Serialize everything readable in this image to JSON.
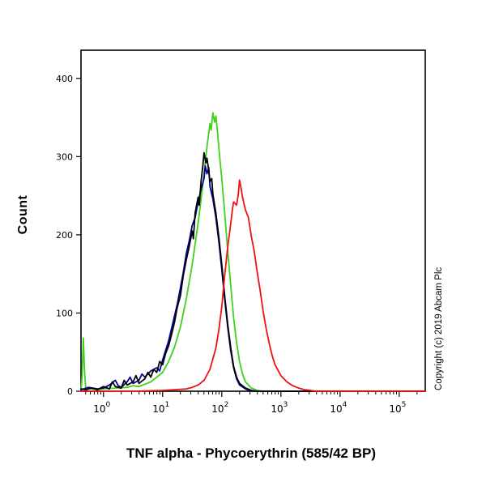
{
  "copyright": "Copyright (c) 2019 Abcam Plc",
  "chart_data": {
    "type": "line",
    "title": "",
    "xlabel": "TNF alpha - Phycoerythrin (585/42 BP)",
    "ylabel": "Count",
    "x_scale": "log10",
    "xlim_log": [
      -0.38,
      5.44
    ],
    "ylim": [
      0,
      436
    ],
    "yticks": [
      0,
      100,
      200,
      300,
      400
    ],
    "xticks_exp": [
      0,
      1,
      2,
      3,
      4,
      5
    ],
    "grid": false,
    "legend": "none",
    "plot_border_color": "#000000",
    "series": [
      {
        "name": "green-curve",
        "color": "#3fd11c",
        "points": [
          [
            -0.38,
            0
          ],
          [
            -0.36,
            22
          ],
          [
            -0.34,
            68
          ],
          [
            -0.32,
            25
          ],
          [
            -0.3,
            5
          ],
          [
            -0.2,
            3
          ],
          [
            -0.1,
            2
          ],
          [
            0.0,
            3
          ],
          [
            0.2,
            4
          ],
          [
            0.4,
            5
          ],
          [
            0.5,
            7
          ],
          [
            0.6,
            6
          ],
          [
            0.7,
            9
          ],
          [
            0.8,
            12
          ],
          [
            0.9,
            18
          ],
          [
            1.0,
            24
          ],
          [
            1.1,
            38
          ],
          [
            1.2,
            56
          ],
          [
            1.3,
            82
          ],
          [
            1.4,
            118
          ],
          [
            1.5,
            162
          ],
          [
            1.55,
            188
          ],
          [
            1.6,
            215
          ],
          [
            1.65,
            245
          ],
          [
            1.7,
            278
          ],
          [
            1.75,
            312
          ],
          [
            1.78,
            330
          ],
          [
            1.8,
            342
          ],
          [
            1.82,
            334
          ],
          [
            1.85,
            356
          ],
          [
            1.88,
            344
          ],
          [
            1.9,
            352
          ],
          [
            1.93,
            330
          ],
          [
            1.95,
            312
          ],
          [
            2.0,
            272
          ],
          [
            2.05,
            228
          ],
          [
            2.1,
            180
          ],
          [
            2.15,
            136
          ],
          [
            2.2,
            94
          ],
          [
            2.25,
            62
          ],
          [
            2.3,
            38
          ],
          [
            2.35,
            22
          ],
          [
            2.4,
            12
          ],
          [
            2.5,
            4
          ],
          [
            2.6,
            1
          ],
          [
            2.7,
            0
          ],
          [
            5.44,
            0
          ]
        ]
      },
      {
        "name": "blue-curve",
        "color": "#000099",
        "points": [
          [
            -0.38,
            2
          ],
          [
            -0.25,
            5
          ],
          [
            -0.1,
            3
          ],
          [
            0.0,
            4
          ],
          [
            0.1,
            8
          ],
          [
            0.2,
            14
          ],
          [
            0.25,
            7
          ],
          [
            0.3,
            5
          ],
          [
            0.4,
            12
          ],
          [
            0.45,
            18
          ],
          [
            0.5,
            10
          ],
          [
            0.6,
            14
          ],
          [
            0.65,
            22
          ],
          [
            0.7,
            18
          ],
          [
            0.8,
            26
          ],
          [
            0.9,
            30
          ],
          [
            0.95,
            26
          ],
          [
            1.0,
            40
          ],
          [
            1.05,
            52
          ],
          [
            1.1,
            64
          ],
          [
            1.15,
            80
          ],
          [
            1.2,
            96
          ],
          [
            1.25,
            112
          ],
          [
            1.3,
            132
          ],
          [
            1.35,
            152
          ],
          [
            1.4,
            176
          ],
          [
            1.45,
            192
          ],
          [
            1.5,
            212
          ],
          [
            1.55,
            222
          ],
          [
            1.6,
            242
          ],
          [
            1.65,
            258
          ],
          [
            1.7,
            272
          ],
          [
            1.72,
            288
          ],
          [
            1.75,
            278
          ],
          [
            1.78,
            286
          ],
          [
            1.8,
            262
          ],
          [
            1.85,
            246
          ],
          [
            1.9,
            222
          ],
          [
            1.95,
            192
          ],
          [
            2.0,
            156
          ],
          [
            2.05,
            118
          ],
          [
            2.1,
            82
          ],
          [
            2.15,
            52
          ],
          [
            2.2,
            30
          ],
          [
            2.25,
            16
          ],
          [
            2.3,
            8
          ],
          [
            2.4,
            3
          ],
          [
            2.5,
            0
          ],
          [
            5.44,
            0
          ]
        ]
      },
      {
        "name": "black-curve",
        "color": "#000000",
        "points": [
          [
            -0.38,
            3
          ],
          [
            -0.3,
            2
          ],
          [
            -0.2,
            4
          ],
          [
            -0.1,
            2
          ],
          [
            0.0,
            6
          ],
          [
            0.1,
            3
          ],
          [
            0.15,
            12
          ],
          [
            0.2,
            6
          ],
          [
            0.3,
            4
          ],
          [
            0.35,
            14
          ],
          [
            0.4,
            8
          ],
          [
            0.5,
            12
          ],
          [
            0.55,
            20
          ],
          [
            0.6,
            10
          ],
          [
            0.7,
            16
          ],
          [
            0.75,
            24
          ],
          [
            0.8,
            18
          ],
          [
            0.85,
            28
          ],
          [
            0.9,
            24
          ],
          [
            0.95,
            38
          ],
          [
            1.0,
            34
          ],
          [
            1.05,
            48
          ],
          [
            1.1,
            58
          ],
          [
            1.15,
            72
          ],
          [
            1.2,
            88
          ],
          [
            1.25,
            108
          ],
          [
            1.3,
            122
          ],
          [
            1.35,
            148
          ],
          [
            1.4,
            168
          ],
          [
            1.45,
            185
          ],
          [
            1.5,
            205
          ],
          [
            1.52,
            195
          ],
          [
            1.55,
            228
          ],
          [
            1.6,
            248
          ],
          [
            1.62,
            238
          ],
          [
            1.65,
            268
          ],
          [
            1.68,
            288
          ],
          [
            1.7,
            305
          ],
          [
            1.73,
            292
          ],
          [
            1.75,
            298
          ],
          [
            1.78,
            282
          ],
          [
            1.8,
            268
          ],
          [
            1.83,
            272
          ],
          [
            1.85,
            252
          ],
          [
            1.9,
            228
          ],
          [
            1.95,
            198
          ],
          [
            2.0,
            162
          ],
          [
            2.05,
            122
          ],
          [
            2.1,
            86
          ],
          [
            2.15,
            56
          ],
          [
            2.2,
            32
          ],
          [
            2.25,
            18
          ],
          [
            2.3,
            10
          ],
          [
            2.4,
            4
          ],
          [
            2.5,
            1
          ],
          [
            2.6,
            0
          ],
          [
            5.44,
            0
          ]
        ]
      },
      {
        "name": "red-curve",
        "color": "#ee1111",
        "points": [
          [
            -0.38,
            0
          ],
          [
            0.5,
            0
          ],
          [
            1.0,
            1
          ],
          [
            1.2,
            2
          ],
          [
            1.4,
            3
          ],
          [
            1.5,
            5
          ],
          [
            1.6,
            8
          ],
          [
            1.7,
            14
          ],
          [
            1.8,
            28
          ],
          [
            1.9,
            55
          ],
          [
            1.95,
            78
          ],
          [
            2.0,
            108
          ],
          [
            2.05,
            148
          ],
          [
            2.1,
            184
          ],
          [
            2.15,
            214
          ],
          [
            2.18,
            232
          ],
          [
            2.2,
            242
          ],
          [
            2.25,
            238
          ],
          [
            2.28,
            252
          ],
          [
            2.3,
            270
          ],
          [
            2.33,
            258
          ],
          [
            2.35,
            248
          ],
          [
            2.4,
            232
          ],
          [
            2.45,
            222
          ],
          [
            2.5,
            198
          ],
          [
            2.55,
            178
          ],
          [
            2.6,
            152
          ],
          [
            2.65,
            128
          ],
          [
            2.7,
            102
          ],
          [
            2.75,
            80
          ],
          [
            2.8,
            62
          ],
          [
            2.85,
            46
          ],
          [
            2.9,
            34
          ],
          [
            3.0,
            20
          ],
          [
            3.1,
            12
          ],
          [
            3.2,
            7
          ],
          [
            3.3,
            4
          ],
          [
            3.4,
            2
          ],
          [
            3.5,
            1
          ],
          [
            3.6,
            0
          ],
          [
            5.44,
            0
          ]
        ]
      }
    ]
  }
}
